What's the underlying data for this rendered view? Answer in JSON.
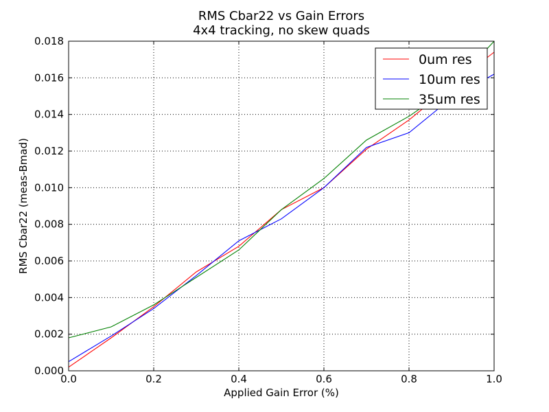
{
  "chart_data": {
    "type": "line",
    "title": "RMS Cbar22 vs Gain Errors",
    "subtitle": "4x4 tracking, no skew quads",
    "xlabel": "Applied Gain Error (%)",
    "ylabel": "RMS Cbar22 (meas-Bmad)",
    "xlim": [
      0.0,
      1.0
    ],
    "ylim": [
      0.0,
      0.018
    ],
    "xticks": [
      0.0,
      0.2,
      0.4,
      0.6,
      0.8,
      1.0
    ],
    "xtick_labels": [
      "0.0",
      "0.2",
      "0.4",
      "0.6",
      "0.8",
      "1.0"
    ],
    "yticks": [
      0.0,
      0.002,
      0.004,
      0.006,
      0.008,
      0.01,
      0.012,
      0.014,
      0.016,
      0.018
    ],
    "ytick_labels": [
      "0.000",
      "0.002",
      "0.004",
      "0.006",
      "0.008",
      "0.010",
      "0.012",
      "0.014",
      "0.016",
      "0.018"
    ],
    "grid": true,
    "legend_position": "top-right",
    "x": [
      0.0,
      0.1,
      0.2,
      0.3,
      0.4,
      0.5,
      0.6,
      0.7,
      0.8,
      0.9,
      1.0
    ],
    "series": [
      {
        "name": "0um res",
        "color": "#ff0000",
        "values": [
          0.0002,
          0.0018,
          0.0035,
          0.0054,
          0.0068,
          0.0088,
          0.01,
          0.0121,
          0.0137,
          0.0156,
          0.0174
        ]
      },
      {
        "name": "10um res",
        "color": "#0000ff",
        "values": [
          0.0005,
          0.0019,
          0.0034,
          0.0052,
          0.0071,
          0.0083,
          0.01,
          0.0122,
          0.013,
          0.0149,
          0.0162
        ]
      },
      {
        "name": "35um res",
        "color": "#008000",
        "values": [
          0.0018,
          0.0024,
          0.0036,
          0.0051,
          0.0066,
          0.0088,
          0.0105,
          0.0126,
          0.0139,
          0.0155,
          0.018
        ]
      }
    ]
  }
}
